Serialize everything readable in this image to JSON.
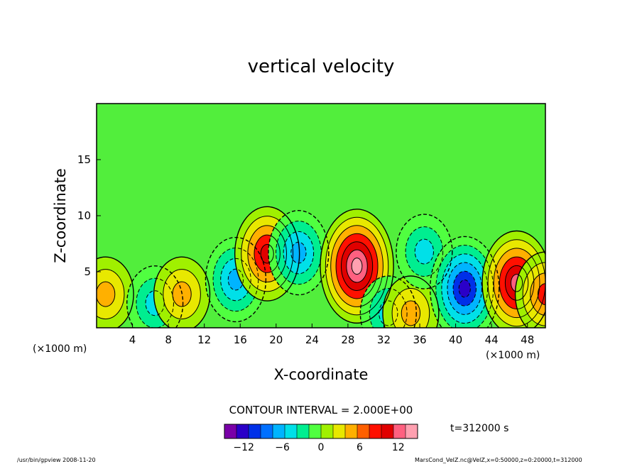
{
  "chart_data": {
    "type": "heatmap",
    "title": "vertical velocity",
    "xlabel": "X-coordinate",
    "ylabel": "Z-coordinate",
    "x_unit_left": "(×1000 m)",
    "x_unit_right": "(×1000 m)",
    "xlim": [
      0,
      50
    ],
    "ylim": [
      0,
      20
    ],
    "x_ticks": [
      4,
      8,
      12,
      16,
      20,
      24,
      28,
      32,
      36,
      40,
      44,
      48
    ],
    "y_ticks": [
      5,
      10,
      15
    ],
    "contour_interval_text": "CONTOUR INTERVAL = 2.000E+00",
    "time_label": "t=312000 s",
    "colorbar": {
      "range": [
        -15,
        15
      ],
      "ticks": [
        -12,
        -6,
        0,
        6,
        12
      ],
      "colors": [
        "#7a00a8",
        "#2a00c8",
        "#0030e8",
        "#0070ff",
        "#00b4ff",
        "#00e0e8",
        "#00ee90",
        "#50ff40",
        "#a0f000",
        "#e8e800",
        "#ffb000",
        "#ff6000",
        "#ff1000",
        "#e00000",
        "#ff6080",
        "#ffa0b0"
      ]
    },
    "features": [
      {
        "x": 1,
        "z": 3,
        "w": 6,
        "kind": "updraft"
      },
      {
        "x": 6.5,
        "z": 2.2,
        "w": -6,
        "kind": "downdraft"
      },
      {
        "x": 9.5,
        "z": 3,
        "w": 6,
        "kind": "updraft"
      },
      {
        "x": 15.5,
        "z": 4.3,
        "w": -8,
        "kind": "downdraft"
      },
      {
        "x": 19,
        "z": 6.6,
        "w": 10,
        "kind": "updraft"
      },
      {
        "x": 22.5,
        "z": 6.7,
        "w": -8,
        "kind": "downdraft"
      },
      {
        "x": 29,
        "z": 5.5,
        "w": 14,
        "kind": "updraft"
      },
      {
        "x": 32.5,
        "z": 1.3,
        "w": -6,
        "kind": "downdraft"
      },
      {
        "x": 35,
        "z": 1.3,
        "w": 6,
        "kind": "updraft"
      },
      {
        "x": 36.5,
        "z": 6.8,
        "w": -6,
        "kind": "downdraft"
      },
      {
        "x": 41,
        "z": 3.5,
        "w": -12,
        "kind": "downdraft"
      },
      {
        "x": 46.8,
        "z": 4,
        "w": 12,
        "kind": "updraft"
      },
      {
        "x": 50,
        "z": 3,
        "w": 8,
        "kind": "updraft"
      }
    ]
  },
  "footer": {
    "left": "/usr/bin/gpview   2008-11-20",
    "right": "MarsCond_VelZ.nc@VelZ,x=0:50000,z=0:20000,t=312000"
  }
}
